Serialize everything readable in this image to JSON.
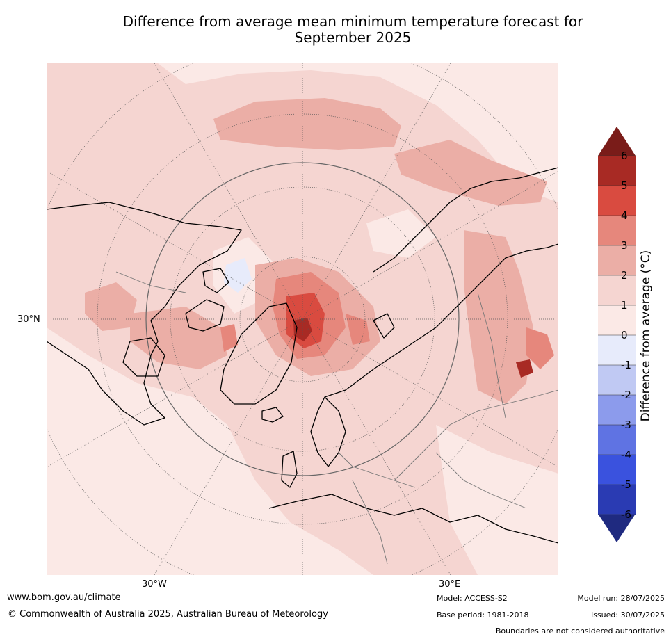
{
  "title_line1": "Difference from average mean minimum temperature forecast for",
  "title_line2": "September 2025",
  "map": {
    "lat_label": "30°N",
    "lon_labels": {
      "west": "30°W",
      "east": "30°E"
    }
  },
  "colorbar": {
    "label": "Difference from average (°C)",
    "ticks": [
      "6",
      "5",
      "4",
      "3",
      "2",
      "1",
      "0",
      "-1",
      "-2",
      "-3",
      "-4",
      "-5",
      "-6"
    ],
    "colors": {
      "above6": "#7a1c19",
      "5to6": "#a82a24",
      "4to5": "#d94b40",
      "3to4": "#e6877c",
      "2to3": "#ebaea6",
      "1to2": "#f5d5d1",
      "0to1": "#fbe9e6",
      "m1to0": "#e7ebfb",
      "m2tom1": "#c0c9f3",
      "m3tom2": "#8c9bec",
      "m4tom3": "#5f73e3",
      "m5tom4": "#3a52de",
      "m6tom5": "#2a3bb3",
      "belowm6": "#1f2a80"
    }
  },
  "footer": {
    "website": "www.bom.gov.au/climate",
    "copyright": "© Commonwealth of Australia 2025, Australian Bureau of Meteorology",
    "model": "Model: ACCESS-S2",
    "base_period": "Base period: 1981-2018",
    "model_run": "Model run: 28/07/2025",
    "issued": "Issued: 30/07/2025",
    "disclaimer": "Boundaries are not considered authoritative"
  }
}
